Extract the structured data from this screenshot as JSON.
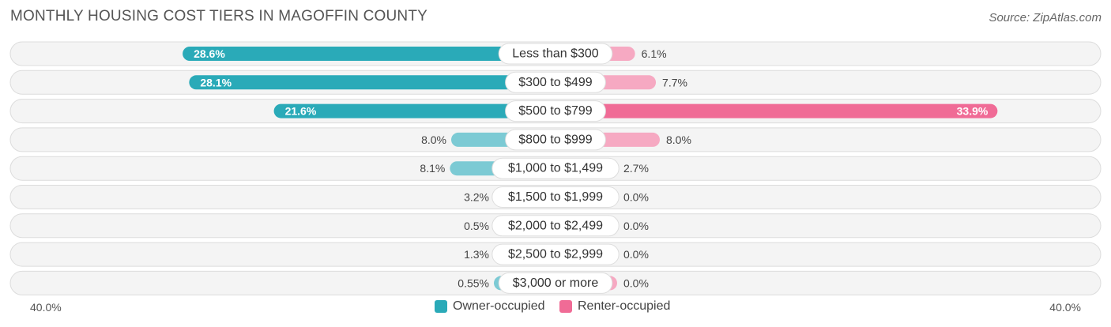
{
  "title": "MONTHLY HOUSING COST TIERS IN MAGOFFIN COUNTY",
  "source": "Source: ZipAtlas.com",
  "axis": {
    "left_label": "40.0%",
    "right_label": "40.0%"
  },
  "legend": [
    {
      "label": "Owner-occupied",
      "color": "#2aaab8"
    },
    {
      "label": "Renter-occupied",
      "color": "#f06b96"
    }
  ],
  "chart_data": {
    "type": "bar",
    "orientation": "horizontal-diverging",
    "xlim": [
      -40,
      40
    ],
    "categories": [
      "Less than $300",
      "$300 to $499",
      "$500 to $799",
      "$800 to $999",
      "$1,000 to $1,499",
      "$1,500 to $1,999",
      "$2,000 to $2,499",
      "$2,500 to $2,999",
      "$3,000 or more"
    ],
    "series": [
      {
        "name": "Owner-occupied",
        "values": [
          28.6,
          28.1,
          21.6,
          8.0,
          8.1,
          3.2,
          0.5,
          1.3,
          0.55
        ],
        "labels": [
          "28.6%",
          "28.1%",
          "21.6%",
          "8.0%",
          "8.1%",
          "3.2%",
          "0.5%",
          "1.3%",
          "0.55%"
        ]
      },
      {
        "name": "Renter-occupied",
        "values": [
          6.1,
          7.7,
          33.9,
          8.0,
          2.7,
          0.0,
          0.0,
          0.0,
          0.0
        ],
        "labels": [
          "6.1%",
          "7.7%",
          "33.9%",
          "8.0%",
          "2.7%",
          "0.0%",
          "0.0%",
          "0.0%",
          "0.0%"
        ]
      }
    ],
    "colors": {
      "owner_strong": "#2aaab8",
      "owner_light": "#7ccad4",
      "renter_strong": "#f06b96",
      "renter_light": "#f6a9c2"
    }
  }
}
